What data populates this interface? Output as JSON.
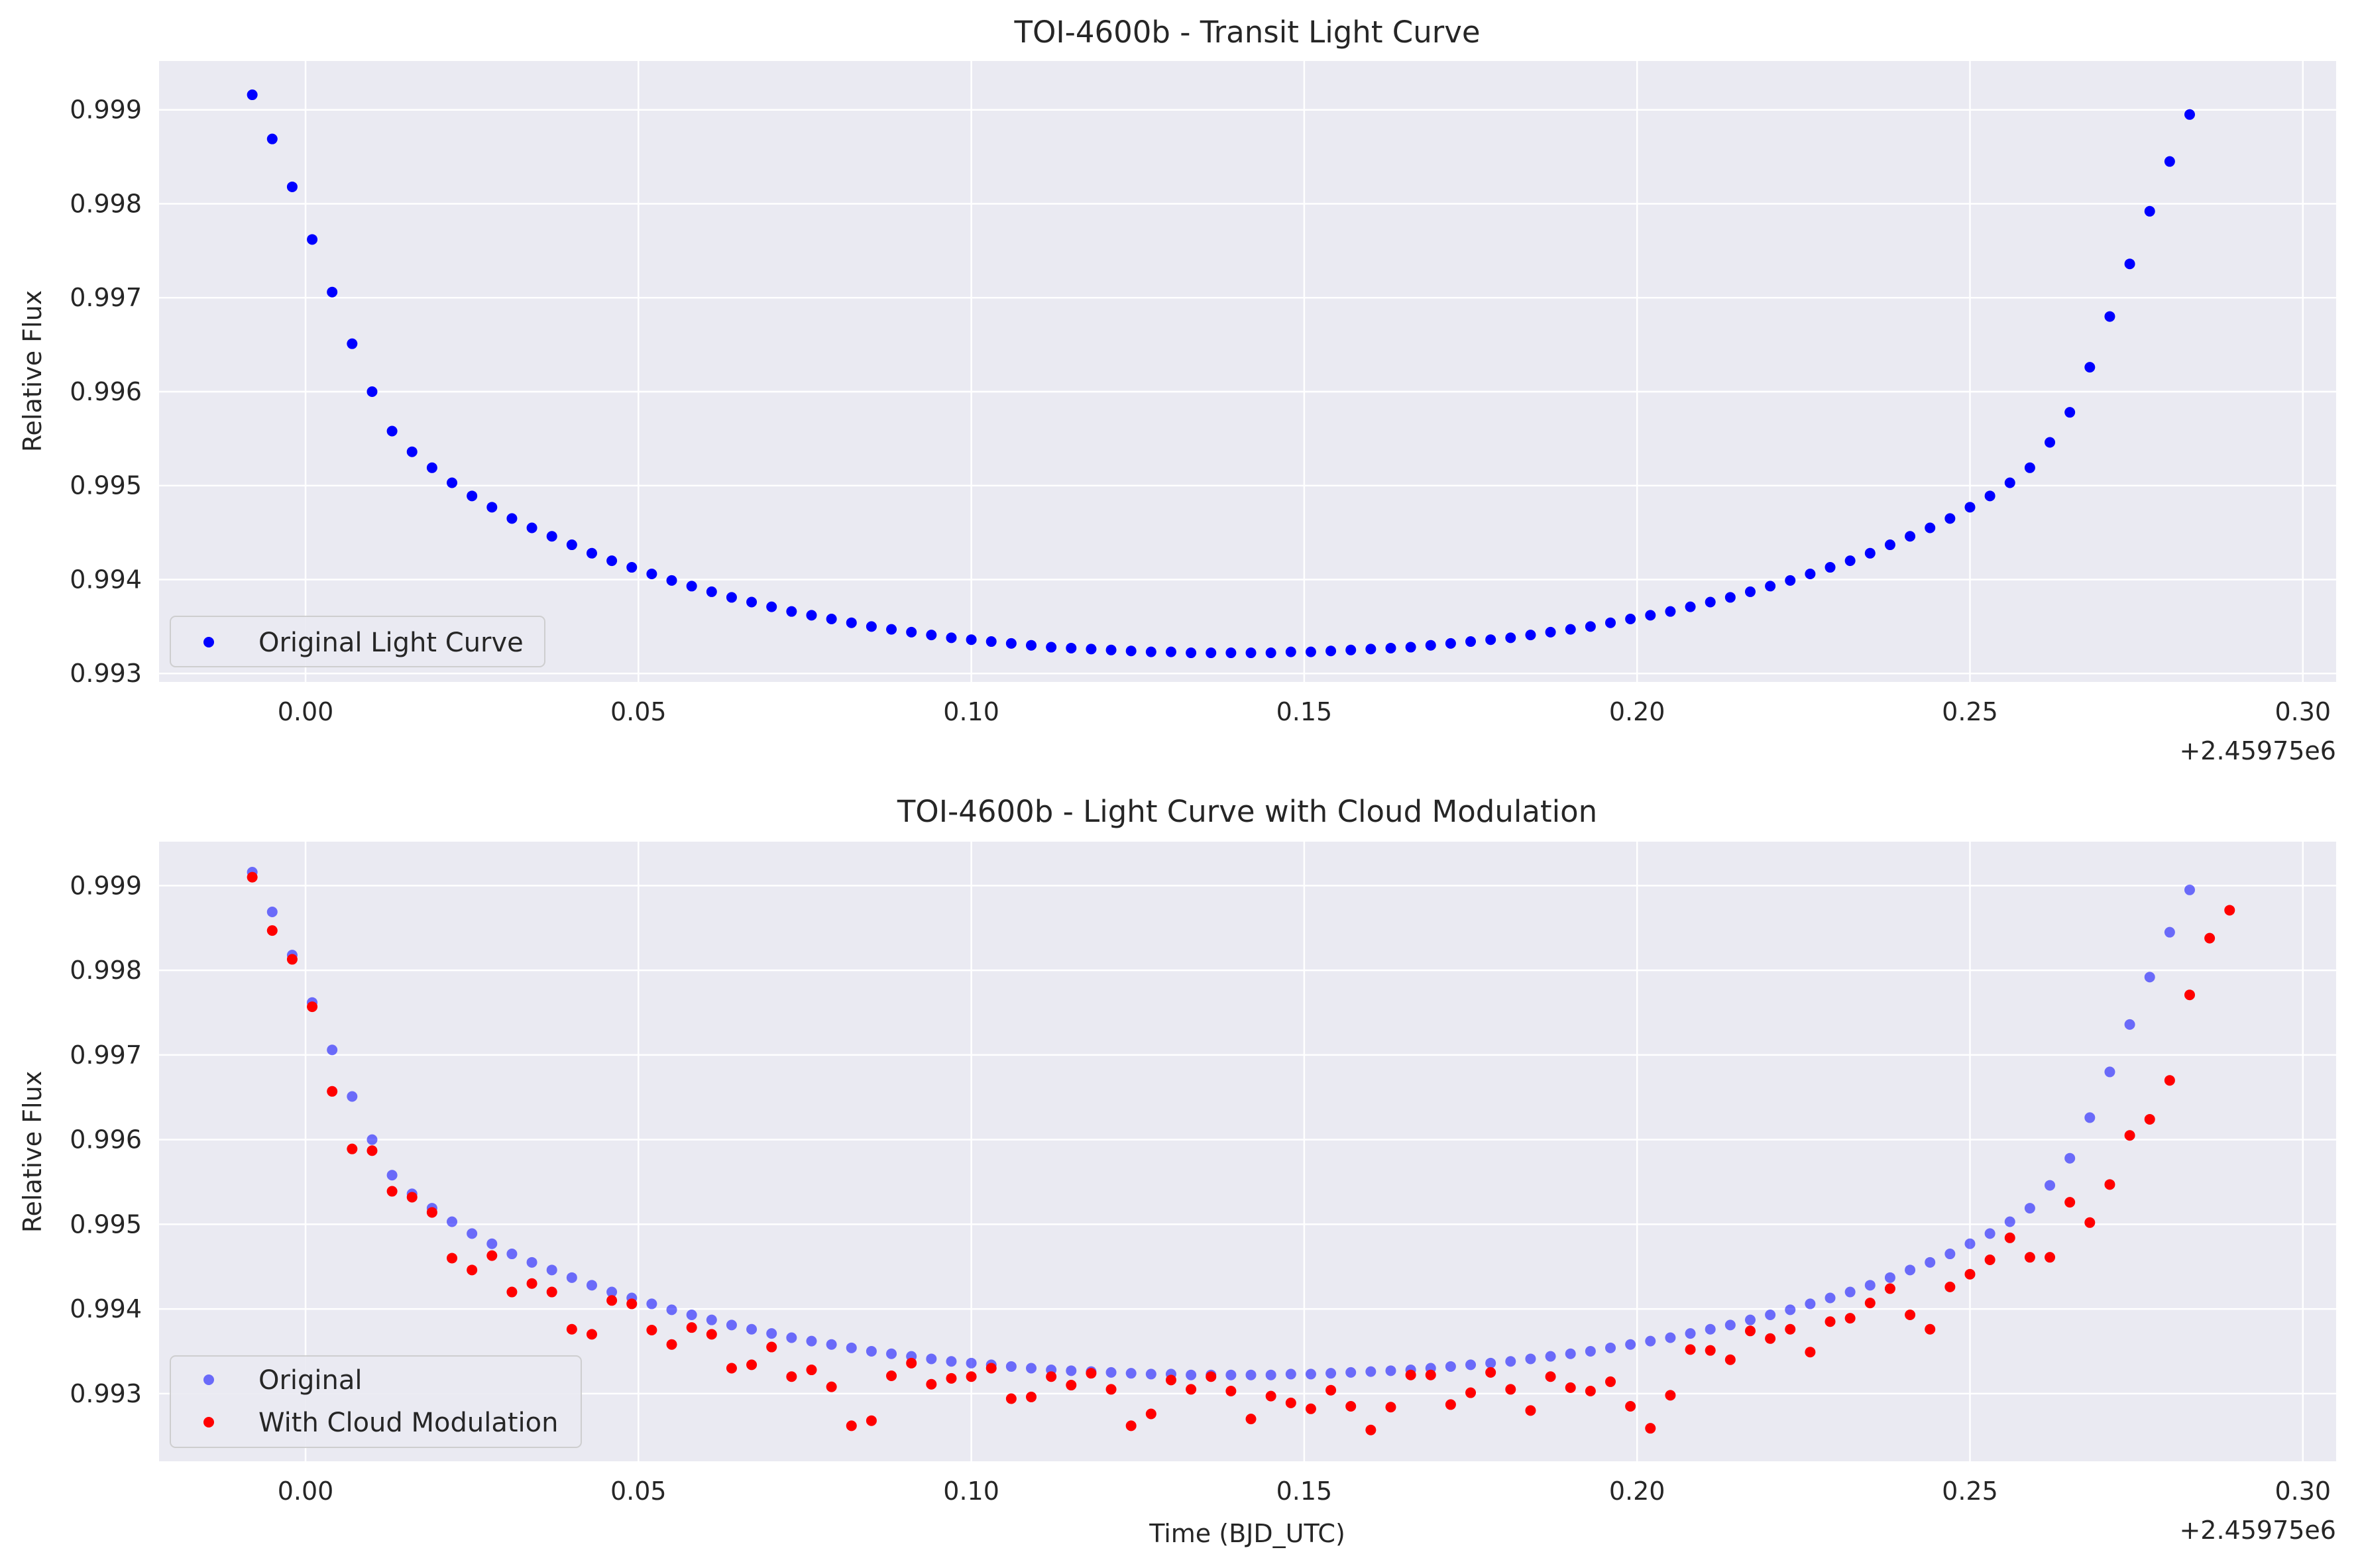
{
  "chart_data": [
    {
      "type": "scatter",
      "title": "TOI-4600b - Transit Light Curve",
      "xlabel": "",
      "ylabel": "Relative Flux",
      "x_offset_label": "+2.45975e6",
      "xlim": [
        -0.022,
        0.305
      ],
      "ylim": [
        0.99291,
        0.99952
      ],
      "xticks": [
        0.0,
        0.05,
        0.1,
        0.15,
        0.2,
        0.25,
        0.3
      ],
      "xtick_labels": [
        "0.00",
        "0.05",
        "0.10",
        "0.15",
        "0.20",
        "0.25",
        "0.30"
      ],
      "yticks": [
        0.993,
        0.994,
        0.995,
        0.996,
        0.997,
        0.998,
        0.999
      ],
      "ytick_labels": [
        "0.993",
        "0.994",
        "0.995",
        "0.996",
        "0.997",
        "0.998",
        "0.999"
      ],
      "grid": true,
      "legend_position": "lower-left",
      "x_start": -0.008,
      "x_step": 0.003,
      "series": [
        {
          "name": "Original Light Curve",
          "color": "#0000ff",
          "opacity": 1.0,
          "values": [
            0.99916,
            0.99869,
            0.99818,
            0.99762,
            0.99706,
            0.99651,
            0.996,
            0.99558,
            0.99536,
            0.99519,
            0.99503,
            0.99489,
            0.99477,
            0.99465,
            0.99455,
            0.99446,
            0.99437,
            0.99428,
            0.9942,
            0.99413,
            0.99406,
            0.99399,
            0.99393,
            0.99387,
            0.99381,
            0.99376,
            0.99371,
            0.99366,
            0.99362,
            0.99358,
            0.99354,
            0.9935,
            0.99347,
            0.99344,
            0.99341,
            0.99338,
            0.99336,
            0.99334,
            0.99332,
            0.9933,
            0.99328,
            0.99327,
            0.99326,
            0.99325,
            0.99324,
            0.99323,
            0.99323,
            0.99322,
            0.99322,
            0.99322,
            0.99322,
            0.99322,
            0.99323,
            0.99323,
            0.99324,
            0.99325,
            0.99326,
            0.99327,
            0.99328,
            0.9933,
            0.99332,
            0.99334,
            0.99336,
            0.99338,
            0.99341,
            0.99344,
            0.99347,
            0.9935,
            0.99354,
            0.99358,
            0.99362,
            0.99366,
            0.99371,
            0.99376,
            0.99381,
            0.99387,
            0.99393,
            0.99399,
            0.99406,
            0.99413,
            0.9942,
            0.99428,
            0.99437,
            0.99446,
            0.99455,
            0.99465,
            0.99477,
            0.99489,
            0.99503,
            0.99519,
            0.99546,
            0.99578,
            0.99626,
            0.9968,
            0.99736,
            0.99792,
            0.99845,
            0.99895
          ]
        }
      ]
    },
    {
      "type": "scatter",
      "title": "TOI-4600b - Light Curve with Cloud Modulation",
      "xlabel": "Time (BJD_UTC)",
      "ylabel": "Relative Flux",
      "x_offset_label": "+2.45975e6",
      "xlim": [
        -0.022,
        0.305
      ],
      "ylim": [
        0.9922,
        0.99952
      ],
      "xticks": [
        0.0,
        0.05,
        0.1,
        0.15,
        0.2,
        0.25,
        0.3
      ],
      "xtick_labels": [
        "0.00",
        "0.05",
        "0.10",
        "0.15",
        "0.20",
        "0.25",
        "0.30"
      ],
      "yticks": [
        0.993,
        0.994,
        0.995,
        0.996,
        0.997,
        0.998,
        0.999
      ],
      "ytick_labels": [
        "0.993",
        "0.994",
        "0.995",
        "0.996",
        "0.997",
        "0.998",
        "0.999"
      ],
      "grid": true,
      "legend_position": "lower-left",
      "x_start": -0.008,
      "x_step": 0.003,
      "series": [
        {
          "name": "Original",
          "color": "#0000ff",
          "opacity": 0.55,
          "values": [
            0.99916,
            0.99869,
            0.99818,
            0.99762,
            0.99706,
            0.99651,
            0.996,
            0.99558,
            0.99536,
            0.99519,
            0.99503,
            0.99489,
            0.99477,
            0.99465,
            0.99455,
            0.99446,
            0.99437,
            0.99428,
            0.9942,
            0.99413,
            0.99406,
            0.99399,
            0.99393,
            0.99387,
            0.99381,
            0.99376,
            0.99371,
            0.99366,
            0.99362,
            0.99358,
            0.99354,
            0.9935,
            0.99347,
            0.99344,
            0.99341,
            0.99338,
            0.99336,
            0.99334,
            0.99332,
            0.9933,
            0.99328,
            0.99327,
            0.99326,
            0.99325,
            0.99324,
            0.99323,
            0.99323,
            0.99322,
            0.99322,
            0.99322,
            0.99322,
            0.99322,
            0.99323,
            0.99323,
            0.99324,
            0.99325,
            0.99326,
            0.99327,
            0.99328,
            0.9933,
            0.99332,
            0.99334,
            0.99336,
            0.99338,
            0.99341,
            0.99344,
            0.99347,
            0.9935,
            0.99354,
            0.99358,
            0.99362,
            0.99366,
            0.99371,
            0.99376,
            0.99381,
            0.99387,
            0.99393,
            0.99399,
            0.99406,
            0.99413,
            0.9942,
            0.99428,
            0.99437,
            0.99446,
            0.99455,
            0.99465,
            0.99477,
            0.99489,
            0.99503,
            0.99519,
            0.99546,
            0.99578,
            0.99626,
            0.9968,
            0.99736,
            0.99792,
            0.99845,
            0.99895
          ]
        },
        {
          "name": "With Cloud Modulation",
          "color": "#ff0000",
          "opacity": 1.0,
          "values": [
            0.9991,
            0.99847,
            0.99813,
            0.99757,
            0.99657,
            0.99589,
            0.99587,
            0.99539,
            0.99532,
            0.99514,
            0.9946,
            0.99446,
            0.99463,
            0.9942,
            0.9943,
            0.9942,
            0.99376,
            0.9937,
            0.9941,
            0.99406,
            0.99375,
            0.99358,
            0.99378,
            0.9937,
            0.9933,
            0.99334,
            0.99355,
            0.9932,
            0.99328,
            0.99308,
            0.99262,
            0.99268,
            0.99321,
            0.99336,
            0.99311,
            0.99318,
            0.9932,
            0.9933,
            0.99294,
            0.99296,
            0.9932,
            0.9931,
            0.99324,
            0.99305,
            0.99262,
            0.99276,
            0.99316,
            0.99305,
            0.9932,
            0.99303,
            0.9927,
            0.99297,
            0.99289,
            0.99282,
            0.99304,
            0.99285,
            0.99257,
            0.99284,
            0.99322,
            0.99322,
            0.99287,
            0.99301,
            0.99325,
            0.99305,
            0.9928,
            0.9932,
            0.99307,
            0.99303,
            0.99314,
            0.99285,
            0.99259,
            0.99298,
            0.99352,
            0.99351,
            0.9934,
            0.99374,
            0.99365,
            0.99376,
            0.99349,
            0.99385,
            0.99389,
            0.99407,
            0.99424,
            0.99393,
            0.99376,
            0.99426,
            0.99441,
            0.99458,
            0.99484,
            0.99461,
            0.99461,
            0.99526,
            0.99502,
            0.99547,
            0.99605,
            0.99624,
            0.9967,
            0.99771,
            0.99838,
            0.99871
          ]
        }
      ]
    }
  ]
}
